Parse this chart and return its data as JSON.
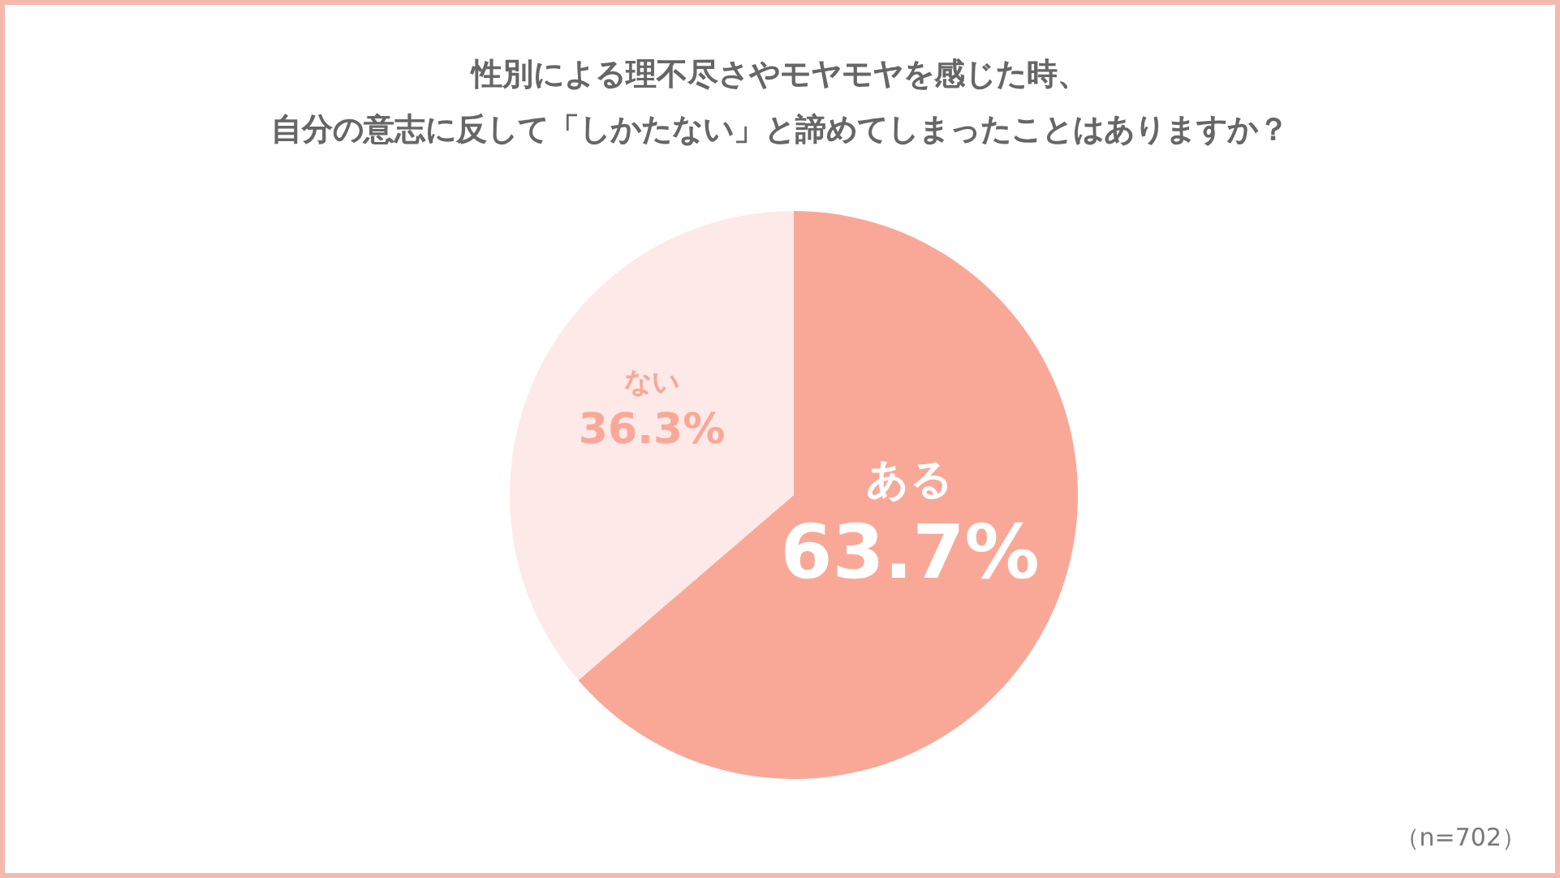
{
  "chart_data": {
    "type": "pie",
    "title": "性別による理不尽さやモヤモヤを感じた時、自分の意志に反して「しかたない」と諦めてしまったことはありますか？",
    "categories": [
      "ある",
      "ない"
    ],
    "values": [
      63.7,
      36.3
    ],
    "colors": [
      "#f9a898",
      "#fde9e7"
    ],
    "value_labels": [
      "63.7%",
      "36.3%"
    ],
    "annotations": [
      "（n=702）"
    ]
  }
}
